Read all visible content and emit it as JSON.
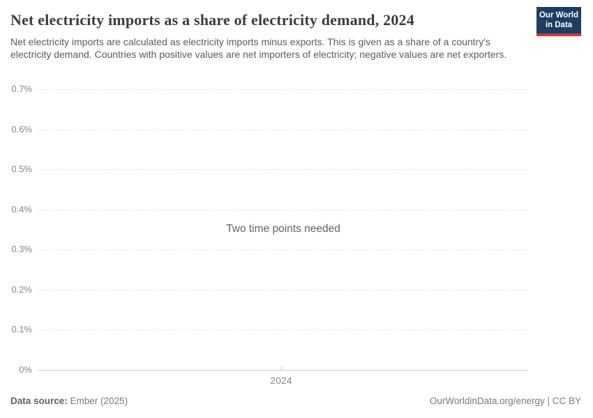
{
  "header": {
    "title": "Net electricity imports as a share of electricity demand, 2024",
    "subtitle": "Net electricity imports are calculated as electricity imports minus exports. This is given as a share of a country's electricity demand. Countries with positive values are net importers of electricity; negative values are net exporters.",
    "logo": {
      "line1": "Our World",
      "line2": "in Data"
    }
  },
  "chart_data": {
    "type": "line",
    "title": "Net electricity imports as a share of electricity demand, 2024",
    "series": [],
    "status_message": "Two time points needed",
    "x_ticks": [
      "2024"
    ],
    "y_ticks": [
      "0.7%",
      "0.6%",
      "0.5%",
      "0.4%",
      "0.3%",
      "0.2%",
      "0.1%",
      "0%"
    ],
    "ylim": [
      0,
      0.7
    ],
    "xlabel": "",
    "ylabel": "",
    "grid": true,
    "legend": "none"
  },
  "footer": {
    "datasource_label": "Data source:",
    "datasource_value": "Ember (2025)",
    "right_text": "OurWorldinData.org/energy | CC BY"
  },
  "colors": {
    "logo_background": "#1d3d63",
    "logo_bar": "#d6382f",
    "gridline": "#e4e4e4",
    "axis_line": "#c8c8c8",
    "title_text": "#383d41",
    "subtitle_text": "#555b5f",
    "tick_text": "#81878b"
  }
}
